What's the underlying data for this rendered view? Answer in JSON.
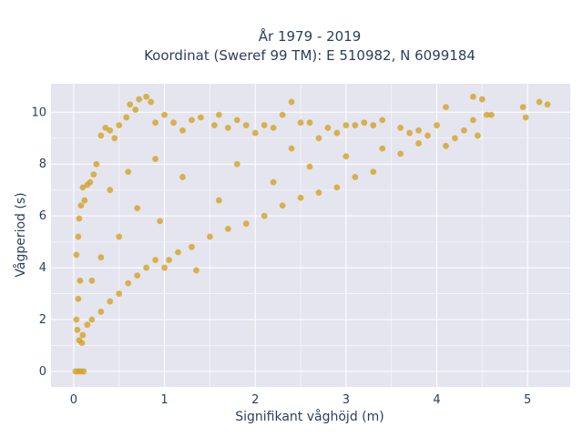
{
  "chart_data": {
    "type": "scatter",
    "title_line1": "År 1979 - 2019",
    "title_line2": "Koordinat (Sweref 99 TM): E 510982, N 6099184",
    "xlabel": "Signifikant våghöjd (m)",
    "ylabel": "Vågperiod (s)",
    "xlim": [
      -0.25,
      5.47
    ],
    "ylim": [
      -0.6,
      11.1
    ],
    "xticks": [
      0,
      1,
      2,
      3,
      4,
      5
    ],
    "yticks": [
      0,
      2,
      4,
      6,
      8,
      10
    ],
    "grid": true,
    "marker_color": "#D4A220",
    "plot_background": "#E5E5F0",
    "series": [
      {
        "name": "",
        "points": [
          [
            0.02,
            0.0
          ],
          [
            0.05,
            0.0
          ],
          [
            0.08,
            0.0
          ],
          [
            0.11,
            0.0
          ],
          [
            0.06,
            1.2
          ],
          [
            0.09,
            1.1
          ],
          [
            0.04,
            1.6
          ],
          [
            0.03,
            2.0
          ],
          [
            0.05,
            2.8
          ],
          [
            0.07,
            3.5
          ],
          [
            0.03,
            4.5
          ],
          [
            0.05,
            5.2
          ],
          [
            0.06,
            5.9
          ],
          [
            0.08,
            6.4
          ],
          [
            0.1,
            7.1
          ],
          [
            0.12,
            6.6
          ],
          [
            0.15,
            7.2
          ],
          [
            0.18,
            7.3
          ],
          [
            0.22,
            7.6
          ],
          [
            0.25,
            8.0
          ],
          [
            0.3,
            9.1
          ],
          [
            0.35,
            9.4
          ],
          [
            0.4,
            9.3
          ],
          [
            0.45,
            9.0
          ],
          [
            0.5,
            9.5
          ],
          [
            0.58,
            9.8
          ],
          [
            0.62,
            10.3
          ],
          [
            0.68,
            10.1
          ],
          [
            0.72,
            10.5
          ],
          [
            0.8,
            10.6
          ],
          [
            0.85,
            10.4
          ],
          [
            0.9,
            9.6
          ],
          [
            1.0,
            9.9
          ],
          [
            1.1,
            9.6
          ],
          [
            1.2,
            9.3
          ],
          [
            1.3,
            9.7
          ],
          [
            1.4,
            9.8
          ],
          [
            1.55,
            9.5
          ],
          [
            1.6,
            9.9
          ],
          [
            1.7,
            9.4
          ],
          [
            1.8,
            9.7
          ],
          [
            1.9,
            9.5
          ],
          [
            2.0,
            9.2
          ],
          [
            2.1,
            9.5
          ],
          [
            2.2,
            9.4
          ],
          [
            2.3,
            9.9
          ],
          [
            2.4,
            10.4
          ],
          [
            2.5,
            9.6
          ],
          [
            2.6,
            9.6
          ],
          [
            2.7,
            9.0
          ],
          [
            2.8,
            9.4
          ],
          [
            2.9,
            9.2
          ],
          [
            3.0,
            9.5
          ],
          [
            3.1,
            9.5
          ],
          [
            3.2,
            9.6
          ],
          [
            3.3,
            9.5
          ],
          [
            3.4,
            9.7
          ],
          [
            3.6,
            9.4
          ],
          [
            3.7,
            9.2
          ],
          [
            3.8,
            9.3
          ],
          [
            3.9,
            9.1
          ],
          [
            4.0,
            9.5
          ],
          [
            4.1,
            10.2
          ],
          [
            4.2,
            9.0
          ],
          [
            4.3,
            9.3
          ],
          [
            4.4,
            10.6
          ],
          [
            4.5,
            10.5
          ],
          [
            4.6,
            9.9
          ],
          [
            4.4,
            9.7
          ],
          [
            4.55,
            9.9
          ],
          [
            4.95,
            10.2
          ],
          [
            4.98,
            9.8
          ],
          [
            5.13,
            10.4
          ],
          [
            5.22,
            10.3
          ],
          [
            4.45,
            9.1
          ],
          [
            4.1,
            8.7
          ],
          [
            3.6,
            8.4
          ],
          [
            3.3,
            7.7
          ],
          [
            3.1,
            7.5
          ],
          [
            2.9,
            7.1
          ],
          [
            2.7,
            6.9
          ],
          [
            2.5,
            6.7
          ],
          [
            2.3,
            6.4
          ],
          [
            2.1,
            6.0
          ],
          [
            1.9,
            5.7
          ],
          [
            1.7,
            5.5
          ],
          [
            1.5,
            5.2
          ],
          [
            1.3,
            4.8
          ],
          [
            1.15,
            4.6
          ],
          [
            1.05,
            4.3
          ],
          [
            1.0,
            4.0
          ],
          [
            0.9,
            4.3
          ],
          [
            0.8,
            4.0
          ],
          [
            0.7,
            3.7
          ],
          [
            0.6,
            3.4
          ],
          [
            0.5,
            3.0
          ],
          [
            0.4,
            2.7
          ],
          [
            0.3,
            2.3
          ],
          [
            0.2,
            2.0
          ],
          [
            0.15,
            1.8
          ],
          [
            0.1,
            1.4
          ],
          [
            1.35,
            3.9
          ],
          [
            0.95,
            5.8
          ],
          [
            1.6,
            6.6
          ],
          [
            2.2,
            7.3
          ],
          [
            2.6,
            7.9
          ],
          [
            3.0,
            8.3
          ],
          [
            3.4,
            8.6
          ],
          [
            3.8,
            8.8
          ],
          [
            0.7,
            6.3
          ],
          [
            0.5,
            5.2
          ],
          [
            0.3,
            4.4
          ],
          [
            0.2,
            3.5
          ],
          [
            1.2,
            7.5
          ],
          [
            1.8,
            8.0
          ],
          [
            2.4,
            8.6
          ],
          [
            0.9,
            8.2
          ],
          [
            0.6,
            7.7
          ],
          [
            0.4,
            7.0
          ]
        ]
      }
    ]
  }
}
